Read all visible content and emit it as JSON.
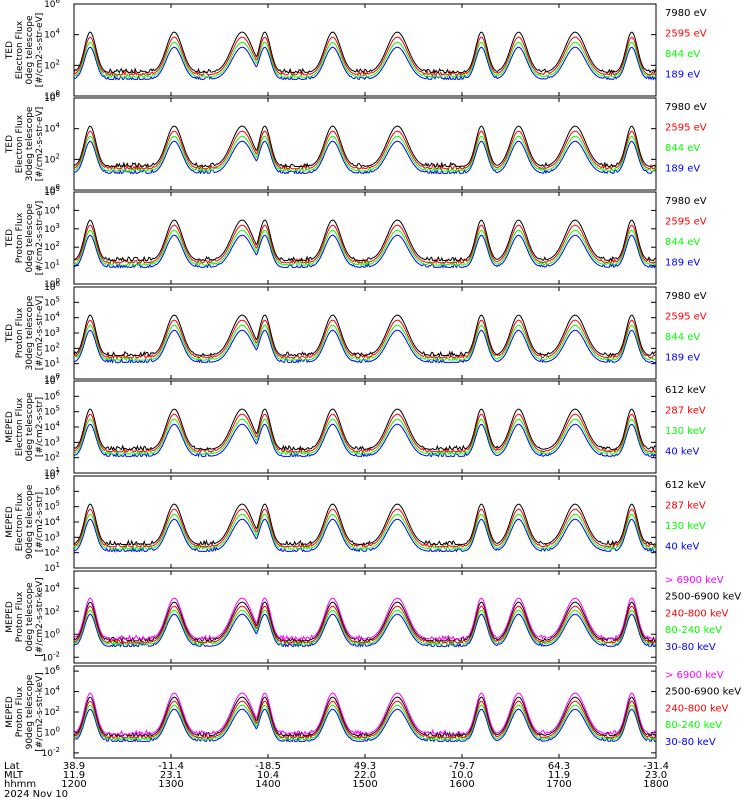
{
  "colors": {
    "blue": "#0000ff",
    "red": "#ff0000",
    "green": "#00ff00",
    "black": "#000000",
    "magenta": "#ff00ff",
    "frame": "#000000"
  },
  "chart_data": [
    {
      "type": "line",
      "ylabel": [
        "TED",
        "Electron Flux",
        "0deg telescope",
        "[#/cm2-s-str-eV]"
      ],
      "ytick_exps": [
        0,
        2,
        4,
        6
      ],
      "ylim_log10": [
        0,
        6
      ],
      "log_scale": true,
      "series": [
        {
          "name": "7980 eV",
          "color": "black"
        },
        {
          "name": "2595 eV",
          "color": "red"
        },
        {
          "name": "844 eV",
          "color": "green"
        },
        {
          "name": "189 eV",
          "color": "blue"
        }
      ]
    },
    {
      "type": "line",
      "ylabel": [
        "TED",
        "Electron Flux",
        "30deg telescope",
        "[#/cm2-s-str-eV]"
      ],
      "ytick_exps": [
        0,
        2,
        4,
        6
      ],
      "ylim_log10": [
        0,
        6
      ],
      "log_scale": true,
      "series": [
        {
          "name": "7980 eV",
          "color": "black"
        },
        {
          "name": "2595 eV",
          "color": "red"
        },
        {
          "name": "844 eV",
          "color": "green"
        },
        {
          "name": "189 eV",
          "color": "blue"
        }
      ]
    },
    {
      "type": "line",
      "ylabel": [
        "TED",
        "Proton Flux",
        "0deg telescope",
        "[#/cm2-s-str-eV]"
      ],
      "ytick_exps": [
        0,
        1,
        2,
        3,
        4,
        5
      ],
      "ylim_log10": [
        0,
        5
      ],
      "log_scale": true,
      "series": [
        {
          "name": "7980 eV",
          "color": "black"
        },
        {
          "name": "2595 eV",
          "color": "red"
        },
        {
          "name": "844 eV",
          "color": "green"
        },
        {
          "name": "189 eV",
          "color": "blue"
        }
      ]
    },
    {
      "type": "line",
      "ylabel": [
        "TED",
        "Proton Flux",
        "30deg telescope",
        "[#/cm2-s-str-eV]"
      ],
      "ytick_exps": [
        0,
        1,
        2,
        3,
        4,
        5,
        6
      ],
      "ylim_log10": [
        0,
        6
      ],
      "log_scale": true,
      "series": [
        {
          "name": "7980 eV",
          "color": "black"
        },
        {
          "name": "2595 eV",
          "color": "red"
        },
        {
          "name": "844 eV",
          "color": "green"
        },
        {
          "name": "189 eV",
          "color": "blue"
        }
      ]
    },
    {
      "type": "line",
      "ylabel": [
        "MEPED",
        "Electron Flux",
        "0deg telescope",
        "[#/cm2-s-str]"
      ],
      "ytick_exps": [
        1,
        2,
        3,
        4,
        5,
        6,
        7
      ],
      "ylim_log10": [
        1,
        7
      ],
      "log_scale": true,
      "series": [
        {
          "name": "612 keV",
          "color": "black"
        },
        {
          "name": "287 keV",
          "color": "red"
        },
        {
          "name": "130 keV",
          "color": "green"
        },
        {
          "name": "40 keV",
          "color": "blue"
        }
      ]
    },
    {
      "type": "line",
      "ylabel": [
        "MEPED",
        "Electron Flux",
        "90deg telescope",
        "[#/cm2-s-str]"
      ],
      "ytick_exps": [
        1,
        2,
        3,
        4,
        5,
        6,
        7
      ],
      "ylim_log10": [
        1,
        7
      ],
      "log_scale": true,
      "series": [
        {
          "name": "612 keV",
          "color": "black"
        },
        {
          "name": "287 keV",
          "color": "red"
        },
        {
          "name": "130 keV",
          "color": "green"
        },
        {
          "name": "40 keV",
          "color": "blue"
        }
      ]
    },
    {
      "type": "line",
      "ylabel": [
        "MEPED",
        "Proton Flux",
        "0deg telescope",
        "[#/cm2-s-str-keV]"
      ],
      "ytick_exps": [
        -2,
        0,
        2,
        4
      ],
      "ylim_log10": [
        -2.5,
        5.5
      ],
      "log_scale": true,
      "series": [
        {
          "name": "> 6900 keV",
          "color": "magenta"
        },
        {
          "name": "2500-6900 keV",
          "color": "black"
        },
        {
          "name": "240-800 keV",
          "color": "red"
        },
        {
          "name": "80-240 keV",
          "color": "green"
        },
        {
          "name": "30-80 keV",
          "color": "blue"
        }
      ]
    },
    {
      "type": "line",
      "ylabel": [
        "MEPED",
        "Proton Flux",
        "90deg telescope",
        "[#/cm2-s-str-keV]"
      ],
      "ytick_exps": [
        -2,
        0,
        2,
        4,
        6
      ],
      "ylim_log10": [
        -2.5,
        6.5
      ],
      "log_scale": true,
      "series": [
        {
          "name": "> 6900 keV",
          "color": "magenta"
        },
        {
          "name": "2500-6900 keV",
          "color": "black"
        },
        {
          "name": "240-800 keV",
          "color": "red"
        },
        {
          "name": "80-240 keV",
          "color": "green"
        },
        {
          "name": "30-80 keV",
          "color": "blue"
        }
      ]
    }
  ],
  "x_axis": {
    "range_hhmm": [
      1200,
      1800
    ],
    "row_labels": [
      "Lat",
      "MLT",
      "hhmm"
    ],
    "ticks": [
      {
        "hhmm": "1200",
        "lat": "38.9",
        "mlt": "11.9"
      },
      {
        "hhmm": "1300",
        "lat": "-11.4",
        "mlt": "23.1"
      },
      {
        "hhmm": "1400",
        "lat": "-18.5",
        "mlt": "10.4"
      },
      {
        "hhmm": "1500",
        "lat": "49.3",
        "mlt": "22.0"
      },
      {
        "hhmm": "1600",
        "lat": "-79.7",
        "mlt": "10.0"
      },
      {
        "hhmm": "1700",
        "lat": "64.3",
        "mlt": "11.9"
      },
      {
        "hhmm": "1800",
        "lat": "-31.4",
        "mlt": "23.0"
      }
    ],
    "date": "2024 Nov 10"
  }
}
